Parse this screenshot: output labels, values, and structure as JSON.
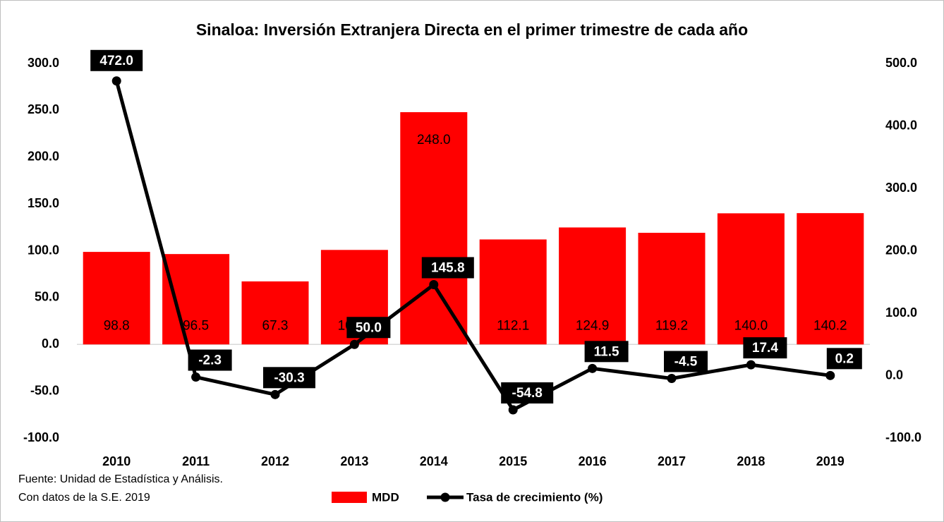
{
  "chart_data": {
    "type": "bar",
    "title": "Sinaloa: Inversión Extranjera Directa en el primer trimestre de cada año",
    "categories": [
      "2010",
      "2011",
      "2012",
      "2013",
      "2014",
      "2015",
      "2016",
      "2017",
      "2018",
      "2019"
    ],
    "series": [
      {
        "name": "MDD",
        "type": "bar",
        "color": "#ff0000",
        "values": [
          98.8,
          96.5,
          67.3,
          100.9,
          248.0,
          112.1,
          124.9,
          119.2,
          140.0,
          140.2
        ],
        "value_labels": [
          "98.8",
          "96.5",
          "67.3",
          "100.9",
          "248.0",
          "112.1",
          "124.9",
          "119.2",
          "140.0",
          "140.2"
        ]
      },
      {
        "name": "Tasa de crecimiento (%)",
        "type": "line",
        "axis": "y2",
        "color": "#000000",
        "values": [
          472.0,
          -2.3,
          -30.3,
          50.0,
          145.8,
          -54.8,
          11.5,
          -4.5,
          17.4,
          0.2
        ],
        "value_labels": [
          "472.0",
          "-2.3",
          "-30.3",
          "50.0",
          "145.8",
          "-54.8",
          "11.5",
          "-4.5",
          "17.4",
          "0.2"
        ]
      }
    ],
    "ylim": [
      -100,
      300
    ],
    "yticks": [
      {
        "value": -100,
        "label": "-100.0"
      },
      {
        "value": -50,
        "label": "-50.0"
      },
      {
        "value": 0,
        "label": "0.0"
      },
      {
        "value": 50,
        "label": "50.0"
      },
      {
        "value": 100,
        "label": "100.0"
      },
      {
        "value": 150,
        "label": "150.0"
      },
      {
        "value": 200,
        "label": "200.0"
      },
      {
        "value": 250,
        "label": "250.0"
      },
      {
        "value": 300,
        "label": "300.0"
      }
    ],
    "y2lim": [
      -100,
      500
    ],
    "y2ticks": [
      {
        "value": -100,
        "label": "-100.0"
      },
      {
        "value": 0,
        "label": "0.0"
      },
      {
        "value": 100,
        "label": "100.0"
      },
      {
        "value": 200,
        "label": "200.0"
      },
      {
        "value": 300,
        "label": "300.0"
      },
      {
        "value": 400,
        "label": "400.0"
      },
      {
        "value": 500,
        "label": "500.0"
      }
    ],
    "notes": [
      "Fuente: Unidad de Estadística y Análisis.",
      "Con datos de la S.E. 2019"
    ]
  }
}
